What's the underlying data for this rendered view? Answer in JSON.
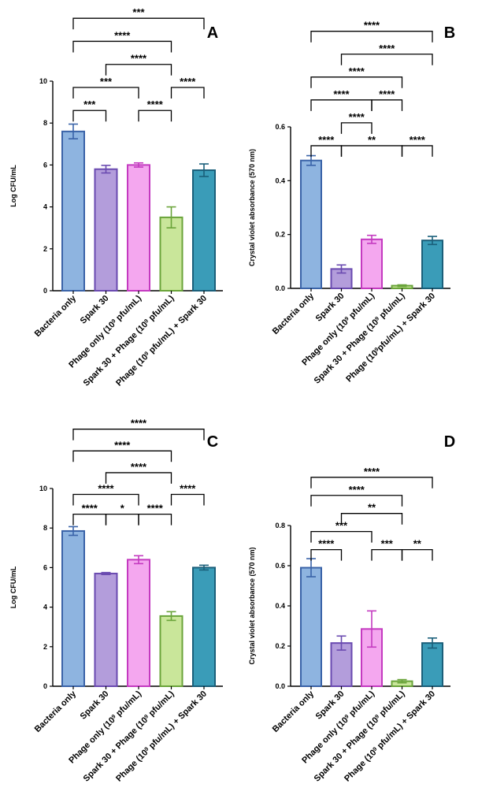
{
  "chart_data": [
    {
      "type": "bar",
      "panel_label": "A",
      "ylabel": "Log CFU/mL",
      "ylim": [
        0,
        10
      ],
      "yticks": [
        0,
        2,
        4,
        6,
        8,
        10
      ],
      "categories": [
        {
          "text": "Bacteria only"
        },
        {
          "text": "Spark 30"
        },
        {
          "pre": "Phage only (10",
          "sup": "9",
          "post": " pfu/mL)"
        },
        {
          "pre": "Spark 30 + Phage (10",
          "sup": "9",
          "post": " pfu/mL)"
        },
        {
          "pre": "Phage (10",
          "sup": "9",
          "post": " pfu/mL) + Spark 30"
        }
      ],
      "values": [
        7.6,
        5.8,
        6.0,
        3.5,
        5.75
      ],
      "errors": [
        0.35,
        0.18,
        0.1,
        0.5,
        0.3
      ],
      "colors": [
        "#8eb4e0",
        "#b39ddb",
        "#f4a7ef",
        "#c9e69a",
        "#3a9cb8"
      ],
      "edge_colors": [
        "#3a63a8",
        "#6a4ab0",
        "#c43ac0",
        "#6aa43a",
        "#1a5f7a"
      ],
      "significance": [
        {
          "from": 0,
          "to": 1,
          "y": 8.6,
          "label": "***"
        },
        {
          "from": 2,
          "to": 3,
          "y": 8.6,
          "label": "****"
        },
        {
          "from": 0,
          "to": 2,
          "y": 9.7,
          "label": "***"
        },
        {
          "from": 3,
          "to": 4,
          "y": 9.7,
          "label": "****"
        },
        {
          "from": 1,
          "to": 3,
          "y": 10.8,
          "label": "****"
        },
        {
          "from": 0,
          "to": 3,
          "y": 11.9,
          "label": "****"
        },
        {
          "from": 0,
          "to": 4,
          "y": 13.0,
          "label": "***"
        }
      ]
    },
    {
      "type": "bar",
      "panel_label": "B",
      "ylabel": "Crystal violet absorbance (570 nm)",
      "ylim": [
        0,
        0.6
      ],
      "yticks": [
        "0.0",
        "0.2",
        "0.4",
        "0.6"
      ],
      "categories": [
        {
          "text": "Bacteria only"
        },
        {
          "text": "Spark 30"
        },
        {
          "pre": "Phage only (10",
          "sup": "9",
          "post": " pfu/mL)"
        },
        {
          "pre": "Spark 30 + Phage (10",
          "sup": "9",
          "post": " pfu/mL)"
        },
        {
          "pre": "Phage (10",
          "sup": "9",
          "post": "pfu/mL) + Spark 30"
        }
      ],
      "values": [
        0.475,
        0.072,
        0.182,
        0.01,
        0.178
      ],
      "errors": [
        0.018,
        0.015,
        0.015,
        0.003,
        0.015
      ],
      "colors": [
        "#8eb4e0",
        "#b39ddb",
        "#f4a7ef",
        "#c9e69a",
        "#3a9cb8"
      ],
      "edge_colors": [
        "#3a63a8",
        "#6a4ab0",
        "#c43ac0",
        "#6aa43a",
        "#1a5f7a"
      ],
      "significance": [
        {
          "from": 0,
          "to": 1,
          "y": 0.53,
          "label": "****"
        },
        {
          "from": 1,
          "to": 3,
          "y": 0.53,
          "label": "**"
        },
        {
          "from": 3,
          "to": 4,
          "y": 0.53,
          "label": "****"
        },
        {
          "from": 1,
          "to": 2,
          "y": 0.615,
          "label": "****"
        },
        {
          "from": 0,
          "to": 2,
          "y": 0.7,
          "label": "****"
        },
        {
          "from": 2,
          "to": 3,
          "y": 0.7,
          "label": "****"
        },
        {
          "from": 0,
          "to": 3,
          "y": 0.785,
          "label": "****"
        },
        {
          "from": 1,
          "to": 4,
          "y": 0.87,
          "label": "****"
        },
        {
          "from": 0,
          "to": 4,
          "y": 0.955,
          "label": "****"
        }
      ]
    },
    {
      "type": "bar",
      "panel_label": "C",
      "ylabel": "Log CFU/mL",
      "ylim": [
        0,
        10
      ],
      "yticks": [
        0,
        2,
        4,
        6,
        8,
        10
      ],
      "categories": [
        {
          "text": "Bacteria only"
        },
        {
          "text": "Spark 30"
        },
        {
          "pre": "Phage only (10",
          "sup": "9",
          "post": " pfu/mL)"
        },
        {
          "pre": "Spark 30 + Phage (10",
          "sup": "9",
          "post": " pfu/mL)"
        },
        {
          "pre": "Phage (10",
          "sup": "9",
          "post": " pfu/mL) + Spark 30"
        }
      ],
      "values": [
        7.85,
        5.7,
        6.4,
        3.55,
        6.0
      ],
      "errors": [
        0.22,
        0.05,
        0.2,
        0.22,
        0.12
      ],
      "colors": [
        "#8eb4e0",
        "#b39ddb",
        "#f4a7ef",
        "#c9e69a",
        "#3a9cb8"
      ],
      "edge_colors": [
        "#3a63a8",
        "#6a4ab0",
        "#c43ac0",
        "#6aa43a",
        "#1a5f7a"
      ],
      "significance": [
        {
          "from": 0,
          "to": 1,
          "y": 8.7,
          "label": "****"
        },
        {
          "from": 1,
          "to": 2,
          "y": 8.7,
          "label": "*"
        },
        {
          "from": 2,
          "to": 3,
          "y": 8.7,
          "label": "****"
        },
        {
          "from": 3,
          "to": 4,
          "y": 9.7,
          "label": "****"
        },
        {
          "from": 0,
          "to": 2,
          "y": 9.7,
          "label": "****"
        },
        {
          "from": 1,
          "to": 3,
          "y": 10.8,
          "label": "****"
        },
        {
          "from": 0,
          "to": 3,
          "y": 11.9,
          "label": "****"
        },
        {
          "from": 0,
          "to": 4,
          "y": 13.0,
          "label": "****"
        }
      ]
    },
    {
      "type": "bar",
      "panel_label": "D",
      "ylabel": "Crystal violet absorbance (570 nm)",
      "ylim": [
        0,
        0.8
      ],
      "yticks": [
        "0.0",
        "0.2",
        "0.4",
        "0.6",
        "0.8"
      ],
      "categories": [
        {
          "text": "Bacteria only"
        },
        {
          "text": "Spark 30"
        },
        {
          "pre": "Phage only (10",
          "sup": "9",
          "post": " pfu/mL)"
        },
        {
          "pre": "Spark 30 + Phage (10",
          "sup": "9",
          "post": " pfu/mL)"
        },
        {
          "pre": "Phage (10",
          "sup": "9",
          "post": " pfu/mL) + Spark 30"
        }
      ],
      "values": [
        0.59,
        0.215,
        0.285,
        0.025,
        0.215
      ],
      "errors": [
        0.045,
        0.035,
        0.09,
        0.008,
        0.025
      ],
      "colors": [
        "#8eb4e0",
        "#b39ddb",
        "#f4a7ef",
        "#c9e69a",
        "#3a9cb8"
      ],
      "edge_colors": [
        "#3a63a8",
        "#6a4ab0",
        "#c43ac0",
        "#6aa43a",
        "#1a5f7a"
      ],
      "significance": [
        {
          "from": 0,
          "to": 1,
          "y": 0.68,
          "label": "****"
        },
        {
          "from": 2,
          "to": 3,
          "y": 0.68,
          "label": "***"
        },
        {
          "from": 3,
          "to": 4,
          "y": 0.68,
          "label": "**"
        },
        {
          "from": 0,
          "to": 2,
          "y": 0.77,
          "label": "***"
        },
        {
          "from": 1,
          "to": 3,
          "y": 0.86,
          "label": "**"
        },
        {
          "from": 0,
          "to": 3,
          "y": 0.95,
          "label": "****"
        },
        {
          "from": 0,
          "to": 4,
          "y": 1.04,
          "label": "****"
        }
      ]
    }
  ]
}
